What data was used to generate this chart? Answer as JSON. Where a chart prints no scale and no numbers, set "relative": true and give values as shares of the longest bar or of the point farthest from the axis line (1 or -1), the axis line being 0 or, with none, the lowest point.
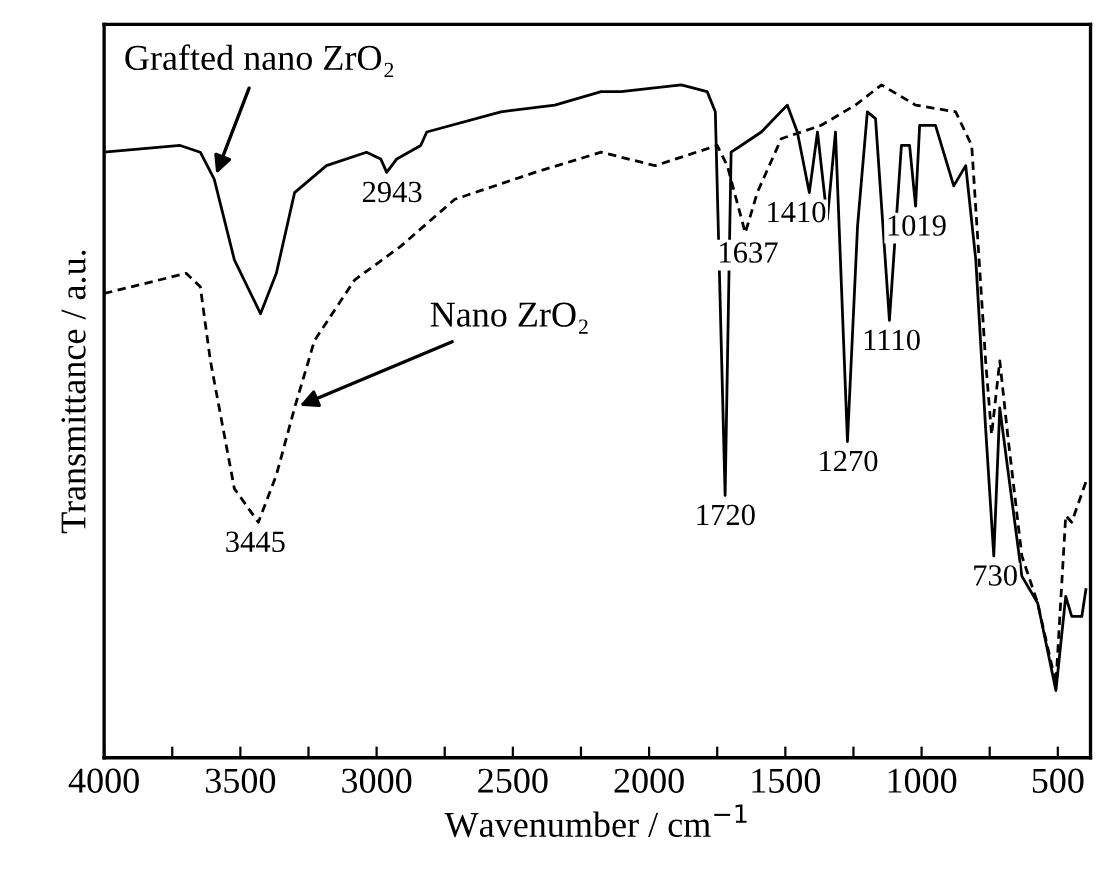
{
  "chart_data": {
    "type": "line",
    "relative": true,
    "xlabel": "Wavenumber / cm$^{−1}$",
    "ylabel": "Transmittance / a.u.",
    "xlim": [
      4000,
      380
    ],
    "xticks": [
      4000,
      {
        "value": 3750,
        "label": null
      },
      3500,
      {
        "value": 3250,
        "label": null
      },
      3000,
      {
        "value": 2750,
        "label": null
      },
      2500,
      {
        "value": 2250,
        "label": null
      },
      2000,
      {
        "value": 1750,
        "label": null
      },
      1500,
      {
        "value": 1250,
        "label": null
      },
      1000,
      {
        "value": 750,
        "label": null
      },
      500
    ],
    "tick_labels": "x",
    "grid": false,
    "legend": false,
    "marker": "none",
    "series": [
      {
        "name": "Grafted nano ZrO₂",
        "color": "#000000",
        "line_style": "solid",
        "x": [
          4000,
          3721,
          3647,
          3596,
          3522,
          3426,
          3368,
          3301,
          3184,
          3037,
          2985,
          2963,
          2926,
          2838,
          2816,
          2544,
          2346,
          2176,
          2103,
          1882,
          1787,
          1757,
          1721,
          1699,
          1662,
          1588,
          1493,
          1456,
          1412,
          1382,
          1346,
          1316,
          1272,
          1235,
          1199,
          1169,
          1118,
          1074,
          1044,
          1022,
          1007,
          949,
          882,
          838,
          801,
          765,
          735,
          713,
          684,
          632,
          574,
          507,
          471,
          449,
          412,
          397
        ],
        "values": [
          0.9,
          0.91,
          0.9,
          0.86,
          0.74,
          0.66,
          0.72,
          0.84,
          0.88,
          0.9,
          0.89,
          0.87,
          0.89,
          0.91,
          0.93,
          0.96,
          0.97,
          0.99,
          0.99,
          1.0,
          0.99,
          0.96,
          0.39,
          0.9,
          0.91,
          0.93,
          0.97,
          0.93,
          0.84,
          0.93,
          0.8,
          0.93,
          0.47,
          0.79,
          0.96,
          0.95,
          0.65,
          0.91,
          0.91,
          0.82,
          0.94,
          0.94,
          0.85,
          0.88,
          0.74,
          0.49,
          0.3,
          0.52,
          0.43,
          0.27,
          0.23,
          0.1,
          0.24,
          0.21,
          0.21,
          0.25
        ]
      },
      {
        "name": "Nano ZrO₂",
        "color": "#000000",
        "line_style": "dashed",
        "x": [
          4000,
          3699,
          3647,
          3610,
          3522,
          3434,
          3368,
          3301,
          3228,
          3081,
          2912,
          2713,
          2419,
          2176,
          1978,
          1750,
          1713,
          1647,
          1603,
          1515,
          1368,
          1243,
          1147,
          1022,
          875,
          816,
          765,
          743,
          713,
          684,
          632,
          574,
          507,
          471,
          449,
          397
        ],
        "values": [
          0.69,
          0.72,
          0.7,
          0.59,
          0.4,
          0.35,
          0.42,
          0.52,
          0.62,
          0.71,
          0.76,
          0.83,
          0.87,
          0.9,
          0.88,
          0.91,
          0.88,
          0.78,
          0.84,
          0.92,
          0.94,
          0.97,
          1.0,
          0.97,
          0.96,
          0.91,
          0.59,
          0.48,
          0.59,
          0.48,
          0.3,
          0.23,
          0.11,
          0.36,
          0.35,
          0.41
        ]
      }
    ],
    "annotations": [
      {
        "text": "3445",
        "x": 3445,
        "y": 0.35
      },
      {
        "text": "2943",
        "x": 2943,
        "y": 0.87
      },
      {
        "text": "1720",
        "x": 1720,
        "y": 0.39
      },
      {
        "text": "1637",
        "x": 1637,
        "y": 0.78
      },
      {
        "text": "1410",
        "x": 1410,
        "y": 0.84
      },
      {
        "text": "1270",
        "x": 1270,
        "y": 0.47
      },
      {
        "text": "1110",
        "x": 1110,
        "y": 0.65
      },
      {
        "text": "1019",
        "x": 1019,
        "y": 0.82
      },
      {
        "text": "730",
        "x": 730,
        "y": 0.3
      }
    ]
  }
}
